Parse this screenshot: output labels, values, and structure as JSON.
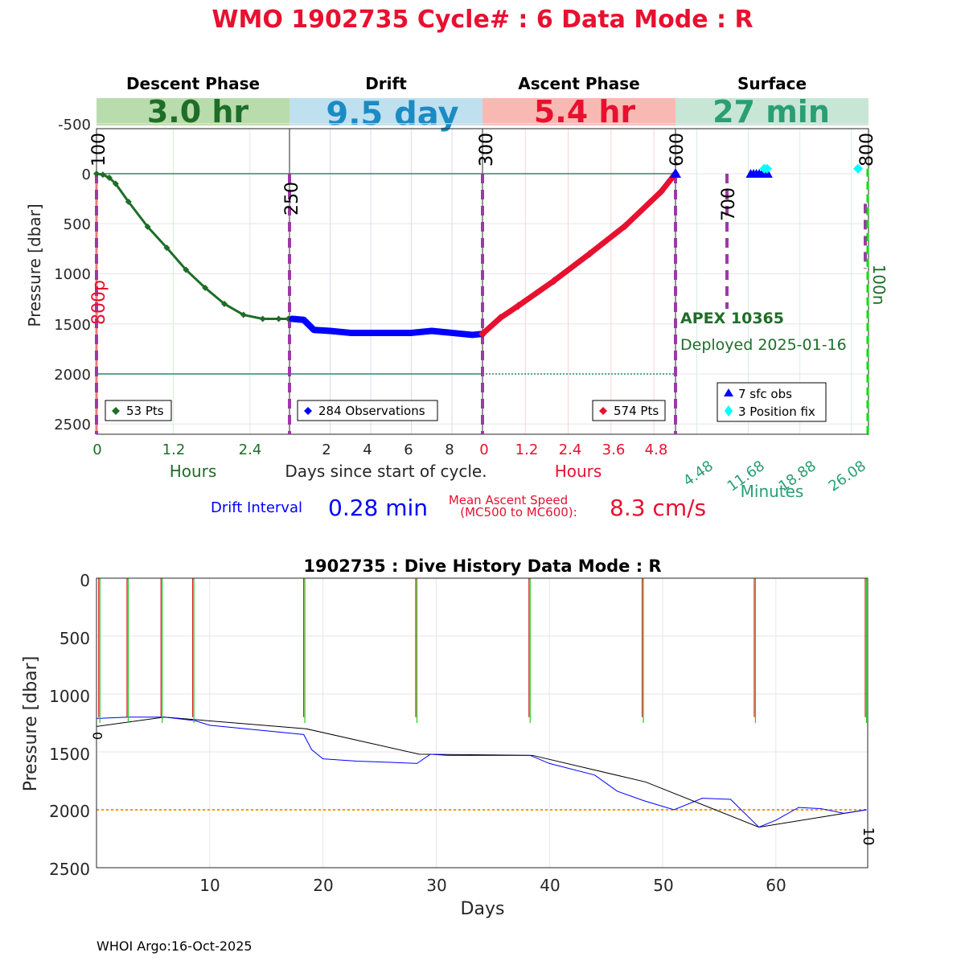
{
  "title": "WMO 1902735   Cycle# : 6   Data Mode : R",
  "footer": "WHOI Argo:16-Oct-2025",
  "colors": {
    "title": "#e8102f",
    "descent": "#1e6e28",
    "descent_band": "#b9dcac",
    "drift": "#0000ff",
    "drift_band": "#bfe0ee",
    "drift_text": "#1a8bc4",
    "ascent": "#e8102f",
    "ascent_band": "#f9b9b3",
    "surface": "#2a9e74",
    "surface_band": "#c7e6d6",
    "marker": "#9b3aa5",
    "ref_line": "#2a8a6a",
    "orange": "#ff9900",
    "green_line": "#00dd00"
  },
  "top_panel": {
    "phases": [
      {
        "name": "Descent Phase",
        "duration": "3.0 hr"
      },
      {
        "name": "Drift",
        "duration": "9.5 day"
      },
      {
        "name": "Ascent Phase",
        "duration": "5.4 hr"
      },
      {
        "name": "Surface",
        "duration": "27 min"
      }
    ],
    "ylabel": "Pressure [dbar]",
    "y_ticks": [
      "-500",
      "0",
      "500",
      "1000",
      "1500",
      "2000",
      "2500"
    ],
    "descent_ticks": [
      "0",
      "1.2",
      "2.4"
    ],
    "descent_xlabel": "Hours",
    "drift_ticks": [
      "2",
      "4",
      "6",
      "8"
    ],
    "drift_xlabel": "Days since start of cycle.",
    "ascent_ticks": [
      "0",
      "1.2",
      "2.4",
      "3.6",
      "4.8"
    ],
    "ascent_xlabel": "Hours",
    "surface_ticks": [
      "4.48",
      "11.68",
      "18.88",
      "26.08"
    ],
    "surface_xlabel": "Minutes",
    "marker_labels": [
      "100",
      "250",
      "300",
      "300",
      "600",
      "700",
      "800"
    ],
    "red_marker_label": "800p",
    "green_marker_label": "100n",
    "legends": {
      "descent": "53 Pts",
      "drift": "284 Observations",
      "ascent": "574 Pts",
      "surface_obs": "7 sfc obs",
      "surface_fix": "3 Position fix"
    },
    "float_name": "APEX 10365",
    "deployed": "Deployed 2025-01-16",
    "drift_interval_label": "Drift Interval",
    "drift_interval_value": "0.28 min",
    "ascent_speed_label_1": "Mean Ascent Speed",
    "ascent_speed_label_2": "(MC500 to MC600):",
    "ascent_speed_value": "8.3 cm/s"
  },
  "bottom_panel": {
    "title": "1902735 : Dive History      Data Mode : R",
    "ylabel": "Pressure [dbar]",
    "xlabel": "Days",
    "y_ticks": [
      "0",
      "500",
      "1000",
      "1500",
      "2000",
      "2500"
    ],
    "x_ticks": [
      "10",
      "20",
      "30",
      "40",
      "50",
      "60"
    ],
    "start_label": "0",
    "end_label": "10"
  },
  "chart_data": [
    {
      "type": "line",
      "title": "WMO 1902735   Cycle# : 6   Data Mode : R",
      "ylabel": "Pressure [dbar]",
      "ylim": [
        2600,
        -600
      ],
      "series": [
        {
          "name": "53 Pts",
          "x_unit": "hours",
          "x": [
            0,
            0.1,
            0.2,
            0.3,
            0.5,
            0.8,
            1.1,
            1.4,
            1.7,
            2.0,
            2.3,
            2.6,
            2.85,
            3.0
          ],
          "y": [
            0,
            10,
            40,
            100,
            280,
            530,
            740,
            960,
            1140,
            1300,
            1410,
            1450,
            1450,
            1450
          ]
        },
        {
          "name": "284 Observations",
          "x_unit": "days",
          "x": [
            0.13,
            0.7,
            1.2,
            2.0,
            3.0,
            4.0,
            5.0,
            6.0,
            7.0,
            8.0,
            9.0,
            9.5
          ],
          "y": [
            1450,
            1460,
            1560,
            1570,
            1590,
            1590,
            1590,
            1590,
            1570,
            1590,
            1610,
            1600
          ]
        },
        {
          "name": "574 Pts",
          "x_unit": "hours",
          "x": [
            0,
            0.5,
            1.0,
            2.0,
            3.0,
            4.0,
            5.0,
            5.4
          ],
          "y": [
            1600,
            1440,
            1320,
            1070,
            800,
            520,
            180,
            0
          ]
        },
        {
          "name": "7 sfc obs",
          "x_unit": "minutes",
          "x": [
            12.0,
            12.4,
            12.8,
            13.2,
            13.6,
            14.0,
            14.4
          ],
          "y": [
            0,
            0,
            0,
            0,
            0,
            0,
            0
          ]
        },
        {
          "name": "3 Position fix",
          "x_unit": "minutes",
          "x": [
            13.9,
            14.3,
            27.0
          ],
          "y": [
            -50,
            -50,
            -50
          ]
        }
      ]
    },
    {
      "type": "line",
      "title": "1902735 : Dive History      Data Mode : R",
      "xlabel": "Days",
      "ylabel": "Pressure [dbar]",
      "xlim": [
        0,
        68
      ],
      "ylim": [
        2500,
        0
      ],
      "series": [
        {
          "x": [
            0,
            6,
            18.5,
            28.5,
            38.5,
            48.5,
            58.5,
            68
          ],
          "y": [
            1280,
            1200,
            1300,
            1520,
            1530,
            1760,
            2150,
            2000
          ]
        },
        {
          "x": [
            0,
            0.3,
            2.8,
            6.0,
            8.7,
            10.0,
            18.3,
            19.0,
            20.0,
            23.0,
            26.0,
            28.3,
            29.5,
            31.0,
            38.3,
            40.0,
            44.0,
            46.0,
            48.3,
            51.0,
            53.5,
            56.0,
            58.5,
            60.0,
            62.0,
            64.0,
            66.0,
            68.0
          ],
          "y": [
            1210,
            1210,
            1200,
            1200,
            1230,
            1270,
            1350,
            1480,
            1560,
            1580,
            1590,
            1600,
            1520,
            1530,
            1530,
            1600,
            1700,
            1840,
            1920,
            2000,
            1900,
            1910,
            2150,
            2090,
            1980,
            1990,
            2030,
            2000
          ]
        },
        {
          "x": [
            0.3,
            2.8,
            5.8,
            8.6,
            18.4,
            28.3,
            38.3,
            48.3,
            58.2,
            68
          ],
          "y": [
            0,
            0,
            0,
            0,
            0,
            0,
            0,
            0,
            0,
            0
          ]
        }
      ]
    }
  ]
}
